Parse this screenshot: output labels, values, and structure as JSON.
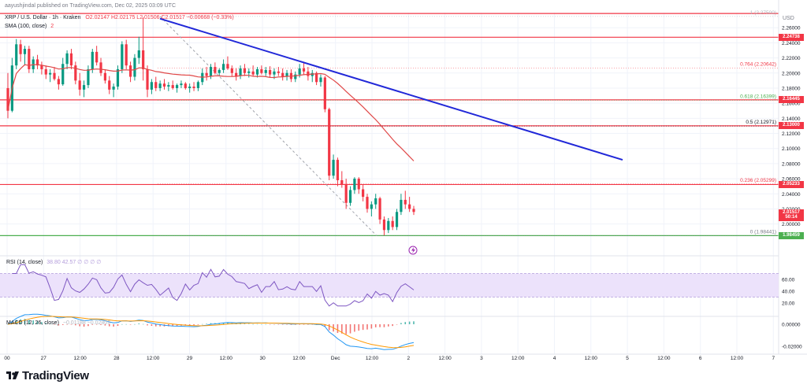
{
  "header": {
    "published_by": "aayushjindal published on TradingView.com, Dec 02, 2025 03:09 UTC",
    "symbol": "XRP / U.S. Dollar · 1h · Kraken",
    "ohlc": "O2.02147  H2.02175  L2.01506  C2.01517  −0.00668 (−0.33%)",
    "sma_label": "SMA (100, close)",
    "sma_value": "2",
    "rsi_label": "RSI (14, close)",
    "rsi_values": "38.80  42.57  ∅  ∅  ∅  ∅",
    "macd_label": "MACD (12, 26, close)",
    "macd_values": "−0.01188  −0.02809"
  },
  "currency": "USD",
  "brand": "TradingView",
  "colors": {
    "up": "#089981",
    "down": "#f23645",
    "trend": "#2128d8",
    "sma": "#e04848",
    "support": "#4caf50",
    "rsi_band": "#ece2fb",
    "rsi": "#7e57c2",
    "macd": "#2196f3",
    "signal": "#ff9800"
  },
  "chart_data": {
    "type": "candlestick",
    "y_axis_ticks": [
      "2.26000",
      "2.24000",
      "2.22000",
      "2.20000",
      "2.18000",
      "2.16000",
      "2.14000",
      "2.12000",
      "2.10000",
      "2.08000",
      "2.06000",
      "2.04000",
      "2.02000",
      "2.00000"
    ],
    "ylim": [
      1.96,
      2.28
    ],
    "x_axis_ticks": [
      "00",
      "27",
      "12:00",
      "28",
      "12:00",
      "29",
      "12:00",
      "30",
      "12:00",
      "Dec",
      "12:00",
      "2",
      "12:00",
      "3",
      "12:00",
      "4",
      "12:00",
      "5",
      "12:00",
      "6",
      "12:00",
      "7"
    ],
    "price_labels": [
      {
        "text": "2.24738",
        "value": 2.24738,
        "color": "#f23645"
      },
      {
        "text": "2.16445",
        "value": 2.16445,
        "color": "#f23645"
      },
      {
        "text": "2.13000",
        "value": 2.13,
        "color": "#f23645"
      },
      {
        "text": "2.05233",
        "value": 2.05233,
        "color": "#f23645"
      },
      {
        "text": "2.01517",
        "value": 2.01517,
        "color": "#f23645"
      },
      {
        "text": "50:14",
        "value": 2.0085,
        "color": "#f23645"
      },
      {
        "text": "1.98459",
        "value": 1.98459,
        "color": "#4caf50"
      }
    ],
    "horizontal_lines": [
      {
        "value": 2.2788,
        "color": "#f23645"
      },
      {
        "value": 2.24738,
        "color": "#f23645"
      },
      {
        "value": 2.16445,
        "color": "#f23645"
      },
      {
        "value": 2.13,
        "color": "#f23645"
      },
      {
        "value": 2.05233,
        "color": "#f23645"
      },
      {
        "value": 1.98459,
        "color": "#4caf50"
      }
    ],
    "fib_levels": [
      {
        "label": "1 (2.27500)",
        "value": 2.275,
        "color": "#b2b5be"
      },
      {
        "label": "0.764 (2.20642)",
        "value": 2.20642,
        "color": "#f23645"
      },
      {
        "label": "0.618 (2.16399)",
        "value": 2.16399,
        "color": "#4caf50"
      },
      {
        "label": "0.5 (2.12971)",
        "value": 2.12971,
        "color": "#131722"
      },
      {
        "label": "0.236 (2.05299)",
        "value": 2.05299,
        "color": "#f23645"
      },
      {
        "label": "0 (1.98441)",
        "value": 1.98441,
        "color": "#787b86"
      }
    ],
    "candles": [
      [
        2.18,
        2.2,
        2.14,
        2.15
      ],
      [
        2.15,
        2.22,
        2.148,
        2.21
      ],
      [
        2.21,
        2.245,
        2.205,
        2.238
      ],
      [
        2.238,
        2.244,
        2.215,
        2.225
      ],
      [
        2.225,
        2.236,
        2.21,
        2.232
      ],
      [
        2.232,
        2.236,
        2.2,
        2.205
      ],
      [
        2.205,
        2.222,
        2.2,
        2.218
      ],
      [
        2.218,
        2.224,
        2.205,
        2.21
      ],
      [
        2.21,
        2.215,
        2.198,
        2.205
      ],
      [
        2.205,
        2.21,
        2.192,
        2.198
      ],
      [
        2.198,
        2.205,
        2.188,
        2.2
      ],
      [
        2.2,
        2.208,
        2.19,
        2.192
      ],
      [
        2.192,
        2.196,
        2.178,
        2.185
      ],
      [
        2.185,
        2.22,
        2.183,
        2.212
      ],
      [
        2.212,
        2.23,
        2.205,
        2.226
      ],
      [
        2.226,
        2.232,
        2.205,
        2.21
      ],
      [
        2.21,
        2.215,
        2.185,
        2.19
      ],
      [
        2.19,
        2.2,
        2.17,
        2.178
      ],
      [
        2.178,
        2.19,
        2.168,
        2.184
      ],
      [
        2.184,
        2.21,
        2.18,
        2.205
      ],
      [
        2.205,
        2.232,
        2.2,
        2.228
      ],
      [
        2.228,
        2.236,
        2.21,
        2.214
      ],
      [
        2.214,
        2.22,
        2.196,
        2.2
      ],
      [
        2.2,
        2.205,
        2.186,
        2.19
      ],
      [
        2.19,
        2.196,
        2.172,
        2.178
      ],
      [
        2.178,
        2.186,
        2.168,
        2.182
      ],
      [
        2.182,
        2.21,
        2.178,
        2.205
      ],
      [
        2.205,
        2.242,
        2.2,
        2.238
      ],
      [
        2.238,
        2.244,
        2.205,
        2.21
      ],
      [
        2.21,
        2.215,
        2.188,
        2.195
      ],
      [
        2.195,
        2.225,
        2.19,
        2.22
      ],
      [
        2.22,
        2.248,
        2.212,
        2.23
      ],
      [
        2.23,
        2.274,
        2.19,
        2.205
      ],
      [
        2.205,
        2.21,
        2.168,
        2.178
      ],
      [
        2.178,
        2.192,
        2.172,
        2.188
      ],
      [
        2.188,
        2.195,
        2.176,
        2.18
      ],
      [
        2.18,
        2.19,
        2.176,
        2.186
      ],
      [
        2.186,
        2.192,
        2.178,
        2.182
      ],
      [
        2.182,
        2.188,
        2.176,
        2.184
      ],
      [
        2.184,
        2.19,
        2.178,
        2.18
      ],
      [
        2.18,
        2.186,
        2.174,
        2.184
      ],
      [
        2.184,
        2.19,
        2.18,
        2.186
      ],
      [
        2.186,
        2.188,
        2.178,
        2.18
      ],
      [
        2.18,
        2.186,
        2.174,
        2.182
      ],
      [
        2.182,
        2.188,
        2.176,
        2.18
      ],
      [
        2.18,
        2.19,
        2.176,
        2.188
      ],
      [
        2.188,
        2.206,
        2.184,
        2.2
      ],
      [
        2.2,
        2.208,
        2.19,
        2.196
      ],
      [
        2.196,
        2.212,
        2.192,
        2.208
      ],
      [
        2.208,
        2.214,
        2.198,
        2.2
      ],
      [
        2.2,
        2.206,
        2.196,
        2.204
      ],
      [
        2.204,
        2.218,
        2.2,
        2.212
      ],
      [
        2.212,
        2.222,
        2.204,
        2.206
      ],
      [
        2.206,
        2.21,
        2.195,
        2.2
      ],
      [
        2.2,
        2.206,
        2.19,
        2.196
      ],
      [
        2.196,
        2.21,
        2.192,
        2.206
      ],
      [
        2.206,
        2.212,
        2.196,
        2.2
      ],
      [
        2.2,
        2.206,
        2.194,
        2.202
      ],
      [
        2.202,
        2.21,
        2.196,
        2.198
      ],
      [
        2.198,
        2.208,
        2.194,
        2.205
      ],
      [
        2.205,
        2.21,
        2.198,
        2.2
      ],
      [
        2.2,
        2.208,
        2.196,
        2.204
      ],
      [
        2.204,
        2.209,
        2.194,
        2.198
      ],
      [
        2.198,
        2.206,
        2.192,
        2.202
      ],
      [
        2.202,
        2.208,
        2.196,
        2.2
      ],
      [
        2.2,
        2.206,
        2.19,
        2.195
      ],
      [
        2.195,
        2.204,
        2.19,
        2.2
      ],
      [
        2.2,
        2.205,
        2.188,
        2.192
      ],
      [
        2.192,
        2.202,
        2.188,
        2.198
      ],
      [
        2.198,
        2.212,
        2.194,
        2.206
      ],
      [
        2.206,
        2.214,
        2.198,
        2.202
      ],
      [
        2.202,
        2.208,
        2.19,
        2.196
      ],
      [
        2.196,
        2.204,
        2.188,
        2.2
      ],
      [
        2.2,
        2.202,
        2.184,
        2.188
      ],
      [
        2.188,
        2.198,
        2.182,
        2.194
      ],
      [
        2.194,
        2.196,
        2.148,
        2.152
      ],
      [
        2.152,
        2.154,
        2.058,
        2.064
      ],
      [
        2.064,
        2.092,
        2.06,
        2.085
      ],
      [
        2.085,
        2.088,
        2.05,
        2.058
      ],
      [
        2.058,
        2.07,
        2.048,
        2.052
      ],
      [
        2.052,
        2.06,
        2.02,
        2.028
      ],
      [
        2.028,
        2.05,
        2.024,
        2.045
      ],
      [
        2.045,
        2.062,
        2.04,
        2.06
      ],
      [
        2.06,
        2.062,
        2.04,
        2.046
      ],
      [
        2.046,
        2.052,
        2.03,
        2.036
      ],
      [
        2.036,
        2.04,
        2.015,
        2.02
      ],
      [
        2.02,
        2.03,
        2.01,
        2.026
      ],
      [
        2.026,
        2.04,
        2.02,
        2.034
      ],
      [
        2.034,
        2.036,
        2.0,
        2.006
      ],
      [
        2.006,
        2.01,
        1.985,
        1.992
      ],
      [
        1.992,
        2.008,
        1.988,
        2.004
      ],
      [
        2.004,
        2.01,
        1.992,
        1.996
      ],
      [
        1.996,
        2.02,
        1.992,
        2.016
      ],
      [
        2.016,
        2.04,
        2.012,
        2.032
      ],
      [
        2.032,
        2.044,
        2.02,
        2.026
      ],
      [
        2.026,
        2.036,
        2.016,
        2.02
      ],
      [
        2.02,
        2.024,
        2.012,
        2.016
      ]
    ],
    "rsi_axis_ticks": [
      "60.00",
      "40.00",
      "20.00"
    ],
    "macd_axis_ticks": [
      "0.00000",
      "-0.02000"
    ]
  }
}
